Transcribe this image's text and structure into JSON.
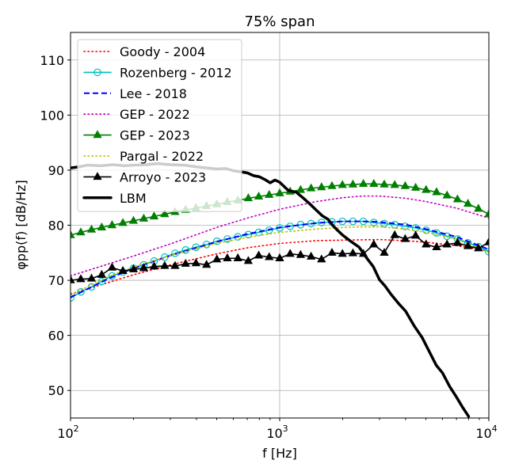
{
  "chart_data": {
    "type": "line",
    "title": "75% span",
    "xlabel": "f [Hz]",
    "ylabel": "φpp(f) [dB/Hz]",
    "x_scale": "log",
    "xlim": [
      100,
      10000
    ],
    "ylim": [
      45,
      115
    ],
    "x_ticks": [
      {
        "value": 100,
        "base": "10",
        "exp": "2"
      },
      {
        "value": 1000,
        "base": "10",
        "exp": "3"
      },
      {
        "value": 10000,
        "base": "10",
        "exp": "4"
      }
    ],
    "y_ticks": [
      50,
      60,
      70,
      80,
      90,
      100,
      110
    ],
    "grid": true,
    "legend_position": "top-left",
    "series": [
      {
        "name": "Goody - 2004",
        "color": "#ff0000",
        "style": "dotted",
        "marker": "none",
        "x": [
          100,
          200,
          300,
          500,
          700,
          1000,
          1500,
          2000,
          3000,
          4000,
          5000,
          7000,
          10000
        ],
        "y": [
          67.5,
          71.0,
          72.8,
          74.8,
          75.9,
          76.7,
          77.2,
          77.3,
          77.4,
          77.2,
          76.9,
          76.3,
          75.3
        ]
      },
      {
        "name": "Rozenberg - 2012",
        "color": "#00bfbf",
        "style": "solid",
        "marker": "circle-open",
        "x": [
          100,
          112,
          126,
          141,
          158,
          178,
          200,
          224,
          251,
          282,
          316,
          355,
          398,
          447,
          501,
          562,
          631,
          708,
          794,
          891,
          1000,
          1122,
          1259,
          1413,
          1585,
          1778,
          1995,
          2239,
          2512,
          2818,
          3162,
          3548,
          3981,
          4467,
          5012,
          5623,
          6310,
          7079,
          7943,
          8913,
          10000
        ],
        "y": [
          66.8,
          67.9,
          68.8,
          69.8,
          70.8,
          71.5,
          72.2,
          72.8,
          73.5,
          74.2,
          74.9,
          75.5,
          76.0,
          76.5,
          77.1,
          77.5,
          77.9,
          78.3,
          78.7,
          79.1,
          79.5,
          79.8,
          80.1,
          80.3,
          80.5,
          80.6,
          80.7,
          80.7,
          80.7,
          80.5,
          80.3,
          80.1,
          79.8,
          79.5,
          79.1,
          78.6,
          78.0,
          77.5,
          76.8,
          76.1,
          75.2
        ]
      },
      {
        "name": "Lee - 2018",
        "color": "#0000ff",
        "style": "dashed",
        "marker": "none",
        "x": [
          100,
          150,
          200,
          300,
          500,
          700,
          1000,
          1500,
          2000,
          2500,
          3000,
          4000,
          5000,
          7000,
          10000
        ],
        "y": [
          66.9,
          70.2,
          72.2,
          74.5,
          77.0,
          78.4,
          79.6,
          80.4,
          80.7,
          80.7,
          80.6,
          80.1,
          79.3,
          77.9,
          75.6
        ]
      },
      {
        "name": "GEP - 2022",
        "color": "#bf00bf",
        "style": "dotted",
        "marker": "none",
        "x": [
          100,
          150,
          200,
          300,
          500,
          700,
          1000,
          1500,
          2000,
          2500,
          3000,
          4000,
          5000,
          7000,
          10000
        ],
        "y": [
          70.8,
          72.9,
          74.4,
          76.6,
          79.6,
          81.3,
          82.9,
          84.3,
          85.0,
          85.3,
          85.3,
          84.9,
          84.3,
          83.1,
          81.3
        ]
      },
      {
        "name": "GEP - 2023",
        "color": "#007f00",
        "style": "solid",
        "marker": "triangle",
        "x": [
          100,
          112,
          126,
          141,
          158,
          178,
          200,
          224,
          251,
          282,
          316,
          355,
          398,
          447,
          501,
          562,
          631,
          708,
          794,
          891,
          1000,
          1122,
          1259,
          1413,
          1585,
          1778,
          1995,
          2239,
          2512,
          2818,
          3162,
          3548,
          3981,
          4467,
          5012,
          5623,
          6310,
          7079,
          7943,
          8913,
          10000
        ],
        "y": [
          78.2,
          78.7,
          79.2,
          79.6,
          80.0,
          80.4,
          80.8,
          81.2,
          81.6,
          82.0,
          82.4,
          82.8,
          83.1,
          83.5,
          83.8,
          84.2,
          84.5,
          84.9,
          85.2,
          85.5,
          85.8,
          86.1,
          86.4,
          86.7,
          86.9,
          87.1,
          87.3,
          87.4,
          87.5,
          87.5,
          87.4,
          87.3,
          87.1,
          86.8,
          86.4,
          86.0,
          85.4,
          84.7,
          83.9,
          83.0,
          82.0
        ]
      },
      {
        "name": "Pargal - 2022",
        "color": "#bfbf00",
        "style": "dotted",
        "marker": "none",
        "x": [
          100,
          150,
          200,
          300,
          500,
          700,
          1000,
          1500,
          2000,
          2500,
          3000,
          4000,
          5000,
          7000,
          10000
        ],
        "y": [
          67.3,
          70.6,
          72.4,
          74.5,
          76.7,
          77.8,
          78.7,
          79.3,
          79.6,
          79.7,
          79.7,
          79.3,
          78.7,
          77.5,
          75.0
        ]
      },
      {
        "name": "Arroyo - 2023",
        "color": "#000000",
        "style": "solid",
        "marker": "triangle",
        "x": [
          100,
          112,
          126,
          141,
          158,
          178,
          200,
          224,
          251,
          282,
          316,
          355,
          398,
          447,
          501,
          562,
          631,
          708,
          794,
          891,
          1000,
          1122,
          1259,
          1413,
          1585,
          1778,
          1995,
          2239,
          2512,
          2818,
          3162,
          3548,
          3981,
          4467,
          5012,
          5623,
          6310,
          7079,
          7943,
          8913,
          10000
        ],
        "y": [
          70.0,
          70.2,
          70.3,
          71.0,
          72.3,
          71.7,
          72.0,
          72.2,
          72.5,
          72.6,
          72.6,
          73.0,
          73.1,
          72.8,
          73.8,
          74.0,
          74.0,
          73.5,
          74.5,
          74.2,
          74.0,
          74.8,
          74.6,
          74.3,
          73.8,
          75.0,
          74.8,
          74.9,
          74.8,
          76.5,
          75.0,
          78.2,
          77.5,
          78.1,
          76.5,
          76.0,
          76.5,
          76.8,
          76.2,
          75.8,
          76.9
        ]
      },
      {
        "name": "LBM",
        "color": "#000000",
        "style": "solid-thick",
        "marker": "none",
        "x": [
          100,
          110,
          120,
          140,
          160,
          180,
          200,
          230,
          260,
          300,
          350,
          400,
          450,
          500,
          550,
          600,
          650,
          700,
          750,
          800,
          850,
          900,
          950,
          1000,
          1100,
          1200,
          1300,
          1400,
          1500,
          1600,
          1700,
          1800,
          1900,
          2000,
          2200,
          2400,
          2600,
          2800,
          3000,
          3200,
          3400,
          3700,
          4000,
          4400,
          4800,
          5200,
          5600,
          6000,
          6500,
          7000,
          7500,
          8000
        ],
        "y": [
          90.4,
          90.6,
          90.9,
          90.8,
          91.0,
          90.8,
          90.9,
          91.0,
          91.2,
          91.0,
          90.9,
          90.6,
          90.4,
          90.2,
          90.3,
          89.9,
          89.7,
          89.5,
          89.0,
          88.8,
          88.3,
          87.7,
          88.2,
          87.8,
          86.3,
          86.0,
          84.9,
          83.8,
          82.7,
          81.7,
          81.1,
          79.9,
          79.0,
          78.2,
          77.0,
          76.0,
          74.1,
          72.5,
          70.1,
          68.9,
          67.5,
          65.8,
          64.4,
          61.7,
          59.6,
          57.0,
          54.6,
          53.2,
          50.7,
          48.8,
          46.9,
          45.3
        ]
      }
    ]
  }
}
